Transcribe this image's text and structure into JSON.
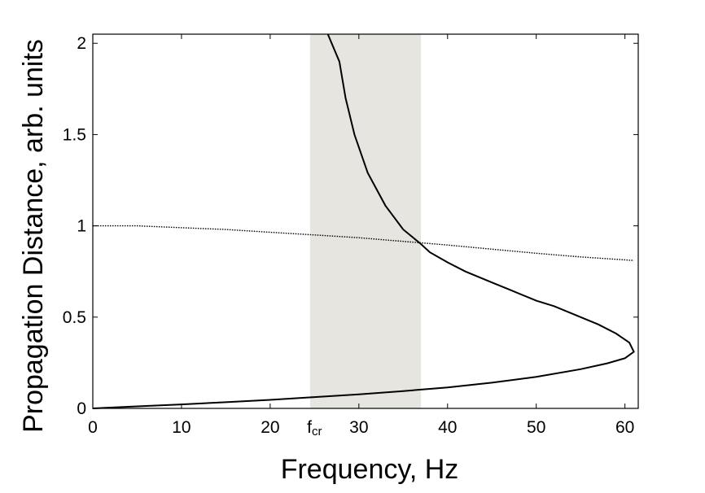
{
  "chart_data": {
    "type": "line",
    "xlabel": "Frequency, Hz",
    "ylabel": "Propagation Distance, arb. units",
    "xlim": [
      0,
      61.5
    ],
    "ylim": [
      0,
      2.05
    ],
    "x_ticks": [
      0,
      10,
      20,
      30,
      40,
      50,
      60
    ],
    "x_tick_labels": [
      "0",
      "10",
      "20",
      "30",
      "40",
      "50",
      "60"
    ],
    "y_ticks": [
      0,
      0.5,
      1,
      1.5,
      2
    ],
    "y_tick_labels": [
      "0",
      "0.5",
      "1",
      "1.5",
      "2"
    ],
    "annotations": [
      {
        "x": 25,
        "text": "f",
        "subscript": "cr"
      }
    ],
    "shaded_band": {
      "x": [
        24.5,
        37
      ],
      "color": "#e6e5e0"
    },
    "grid": false,
    "series": [
      {
        "style": "solid",
        "color": "#000000",
        "points": [
          [
            0,
            0
          ],
          [
            5,
            0.011
          ],
          [
            10,
            0.022
          ],
          [
            15,
            0.034
          ],
          [
            20,
            0.047
          ],
          [
            25,
            0.062
          ],
          [
            30,
            0.077
          ],
          [
            35,
            0.095
          ],
          [
            40,
            0.115
          ],
          [
            45,
            0.141
          ],
          [
            50,
            0.173
          ],
          [
            55,
            0.215
          ],
          [
            58,
            0.247
          ],
          [
            60,
            0.275
          ],
          [
            61,
            0.31
          ],
          [
            60.5,
            0.36
          ],
          [
            59,
            0.41
          ],
          [
            57,
            0.46
          ],
          [
            55,
            0.5
          ],
          [
            52,
            0.56
          ],
          [
            50,
            0.59
          ],
          [
            47,
            0.65
          ],
          [
            45,
            0.69
          ],
          [
            42,
            0.75
          ],
          [
            40,
            0.8
          ],
          [
            38,
            0.855
          ],
          [
            37,
            0.9
          ],
          [
            35,
            0.98
          ],
          [
            33,
            1.11
          ],
          [
            31,
            1.29
          ],
          [
            29.5,
            1.5
          ],
          [
            28.5,
            1.7
          ],
          [
            27.8,
            1.9
          ],
          [
            26.5,
            2.05
          ]
        ]
      },
      {
        "style": "dotted",
        "color": "#000000",
        "points": [
          [
            0,
            1.0
          ],
          [
            5,
            1.0
          ],
          [
            10,
            0.99
          ],
          [
            15,
            0.98
          ],
          [
            20,
            0.965
          ],
          [
            25,
            0.95
          ],
          [
            30,
            0.935
          ],
          [
            35,
            0.915
          ],
          [
            40,
            0.895
          ],
          [
            45,
            0.872
          ],
          [
            50,
            0.85
          ],
          [
            55,
            0.83
          ],
          [
            61,
            0.81
          ]
        ]
      }
    ]
  }
}
